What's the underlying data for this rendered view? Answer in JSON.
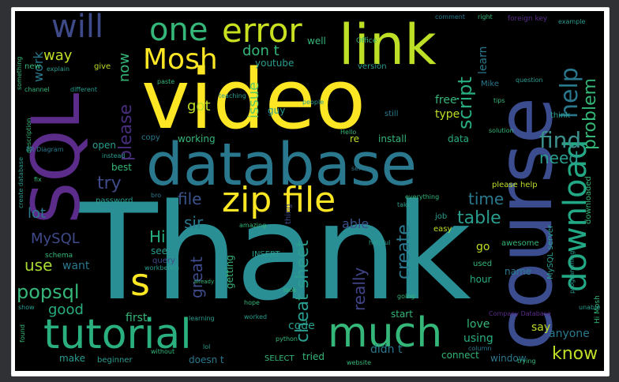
{
  "palette": {
    "teal": "#2a9d8f",
    "yellow": "#fde725",
    "purple": "#5b2c8a",
    "indigo": "#3b4d8f",
    "green": "#35b779",
    "lime": "#a8db34"
  },
  "words": {
    "thank": "Thank",
    "video": "video",
    "course": "course",
    "sql": "SQL",
    "database": "database",
    "link": "link",
    "zip_file": "zip file",
    "tutorial": "tutorial",
    "much": "much",
    "download": "download",
    "error": "error",
    "one": "one",
    "will": "will",
    "mosh": "Mosh",
    "s": "s",
    "help": "help",
    "problem": "problem",
    "find": "find",
    "need": "need",
    "popsql": "popsql",
    "use": "use",
    "good": "good",
    "mysql": "MySQL",
    "lot": "lot",
    "way": "way",
    "work": "work",
    "now": "now",
    "please": "please",
    "try": "try",
    "file": "file",
    "got": "got",
    "issue": "issue",
    "dont": "don t",
    "script": "script",
    "time": "time",
    "table": "table",
    "create": "create",
    "cheat_sheet": "cheat sheet",
    "really": "really",
    "know": "know",
    "anyone": "anyone",
    "hi": "Hi",
    "sir": "sir",
    "great": "great",
    "want": "want",
    "able": "able",
    "first": "first",
    "code": "code",
    "tried": "tried",
    "didnt": "didn t",
    "make": "make",
    "start": "start",
    "say": "say",
    "love": "love",
    "using": "using",
    "go": "go",
    "name": "name",
    "hour": "hour",
    "window": "window",
    "connect": "connect",
    "doesnt": "doesn t",
    "select": "SELECT",
    "insert": "INSERT",
    "getting": "getting",
    "see": "see",
    "query": "query",
    "free": "free",
    "type": "type",
    "learn": "learn",
    "install": "install",
    "data": "data",
    "re": "re",
    "youtube": "youtube",
    "well": "well",
    "guy": "guy",
    "best": "best",
    "open": "open",
    "copy": "copy",
    "working": "working",
    "password": "password",
    "please_help": "please help",
    "mysql_server": "MySQL server",
    "downloaded": "downloaded",
    "think": "think",
    "mike": "Mike",
    "thing": "thing",
    "easy": "easy",
    "used": "used",
    "job": "job",
    "awesome": "awesome",
    "give": "give",
    "new": "new",
    "version": "version",
    "office": "Office",
    "still": "still",
    "example": "example",
    "foreign_key": "foreign key",
    "right": "right",
    "comment": "comment",
    "instead": "instead",
    "schema": "schema",
    "show": "show",
    "found": "found",
    "trying": "trying",
    "beginner": "beginner",
    "website": "website",
    "column": "column",
    "python": "python",
    "learning": "learning",
    "server": "server",
    "hello": "Hello",
    "problem_small": "problem",
    "another": "another",
    "everything": "everything",
    "different": "different",
    "channel": "channel",
    "explain": "explain",
    "solution": "solution",
    "hi_mosh": "Hi Mosh",
    "programming": "programming",
    "company_database": "Company Database",
    "workbench": "workbench",
    "something": "something",
    "create_database": "create database",
    "description": "description",
    "er_diagram": "ER Diagram",
    "understand": "understand",
    "already": "already",
    "page": "page",
    "paste": "paste",
    "teaching": "teaching",
    "watching": "watching",
    "hope": "hope",
    "worked": "worked",
    "look": "look",
    "knowledge": "knowledge",
    "question": "question",
    "load": "load",
    "bro": "bro",
    "click": "click",
    "without": "without",
    "mode": "mode",
    "unable": "unable",
    "tips": "tips",
    "cool": "cool",
    "lol": "lol",
    "fix": "fix",
    "may": "may",
    "people": "people",
    "going": "going",
    "take": "take",
    "amazing": "amazing",
    "helpful": "helpful",
    "video_small": "video",
    "course_small": "course",
    "link_small": "link"
  }
}
